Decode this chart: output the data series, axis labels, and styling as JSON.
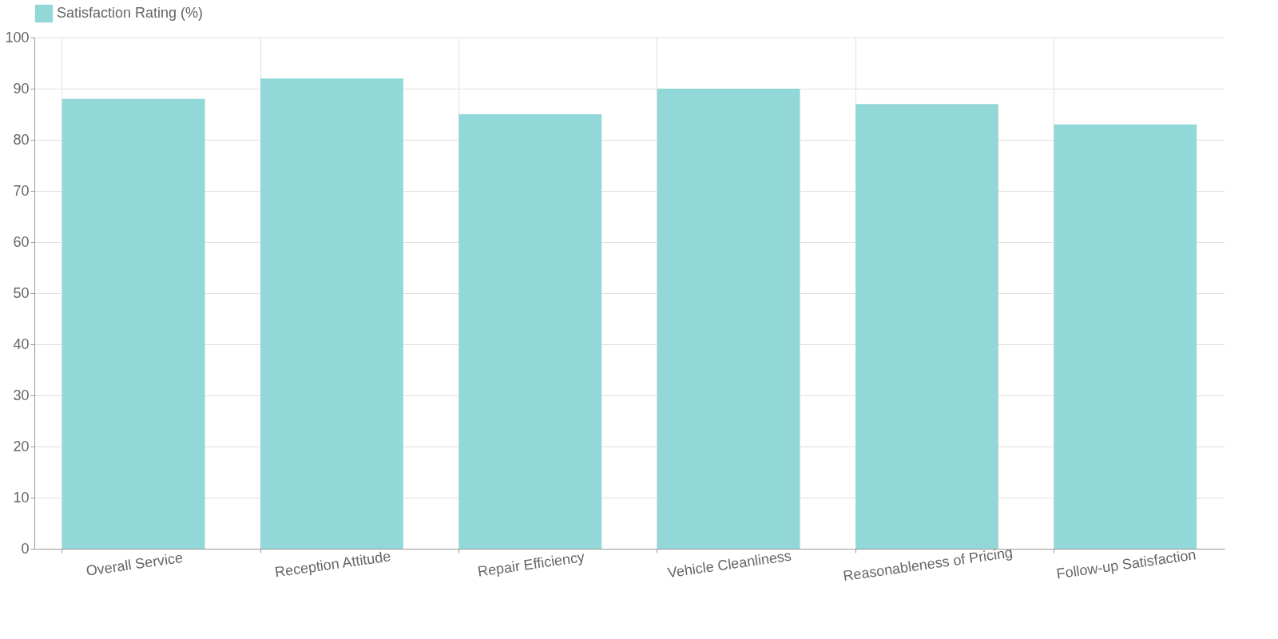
{
  "chart_data": {
    "type": "bar",
    "categories": [
      "Overall Service",
      "Reception Attitude",
      "Repair Efficiency",
      "Vehicle Cleanliness",
      "Reasonableness of Pricing",
      "Follow-up Satisfaction"
    ],
    "series": [
      {
        "name": "Satisfaction Rating (%)",
        "color": "#93d8d8",
        "values": [
          88,
          92,
          85,
          90,
          87,
          83
        ]
      }
    ],
    "ylim": [
      0,
      100
    ],
    "yticks": [
      0,
      10,
      20,
      30,
      40,
      50,
      60,
      70,
      80,
      90,
      100
    ],
    "grid": true,
    "legend": "top"
  }
}
